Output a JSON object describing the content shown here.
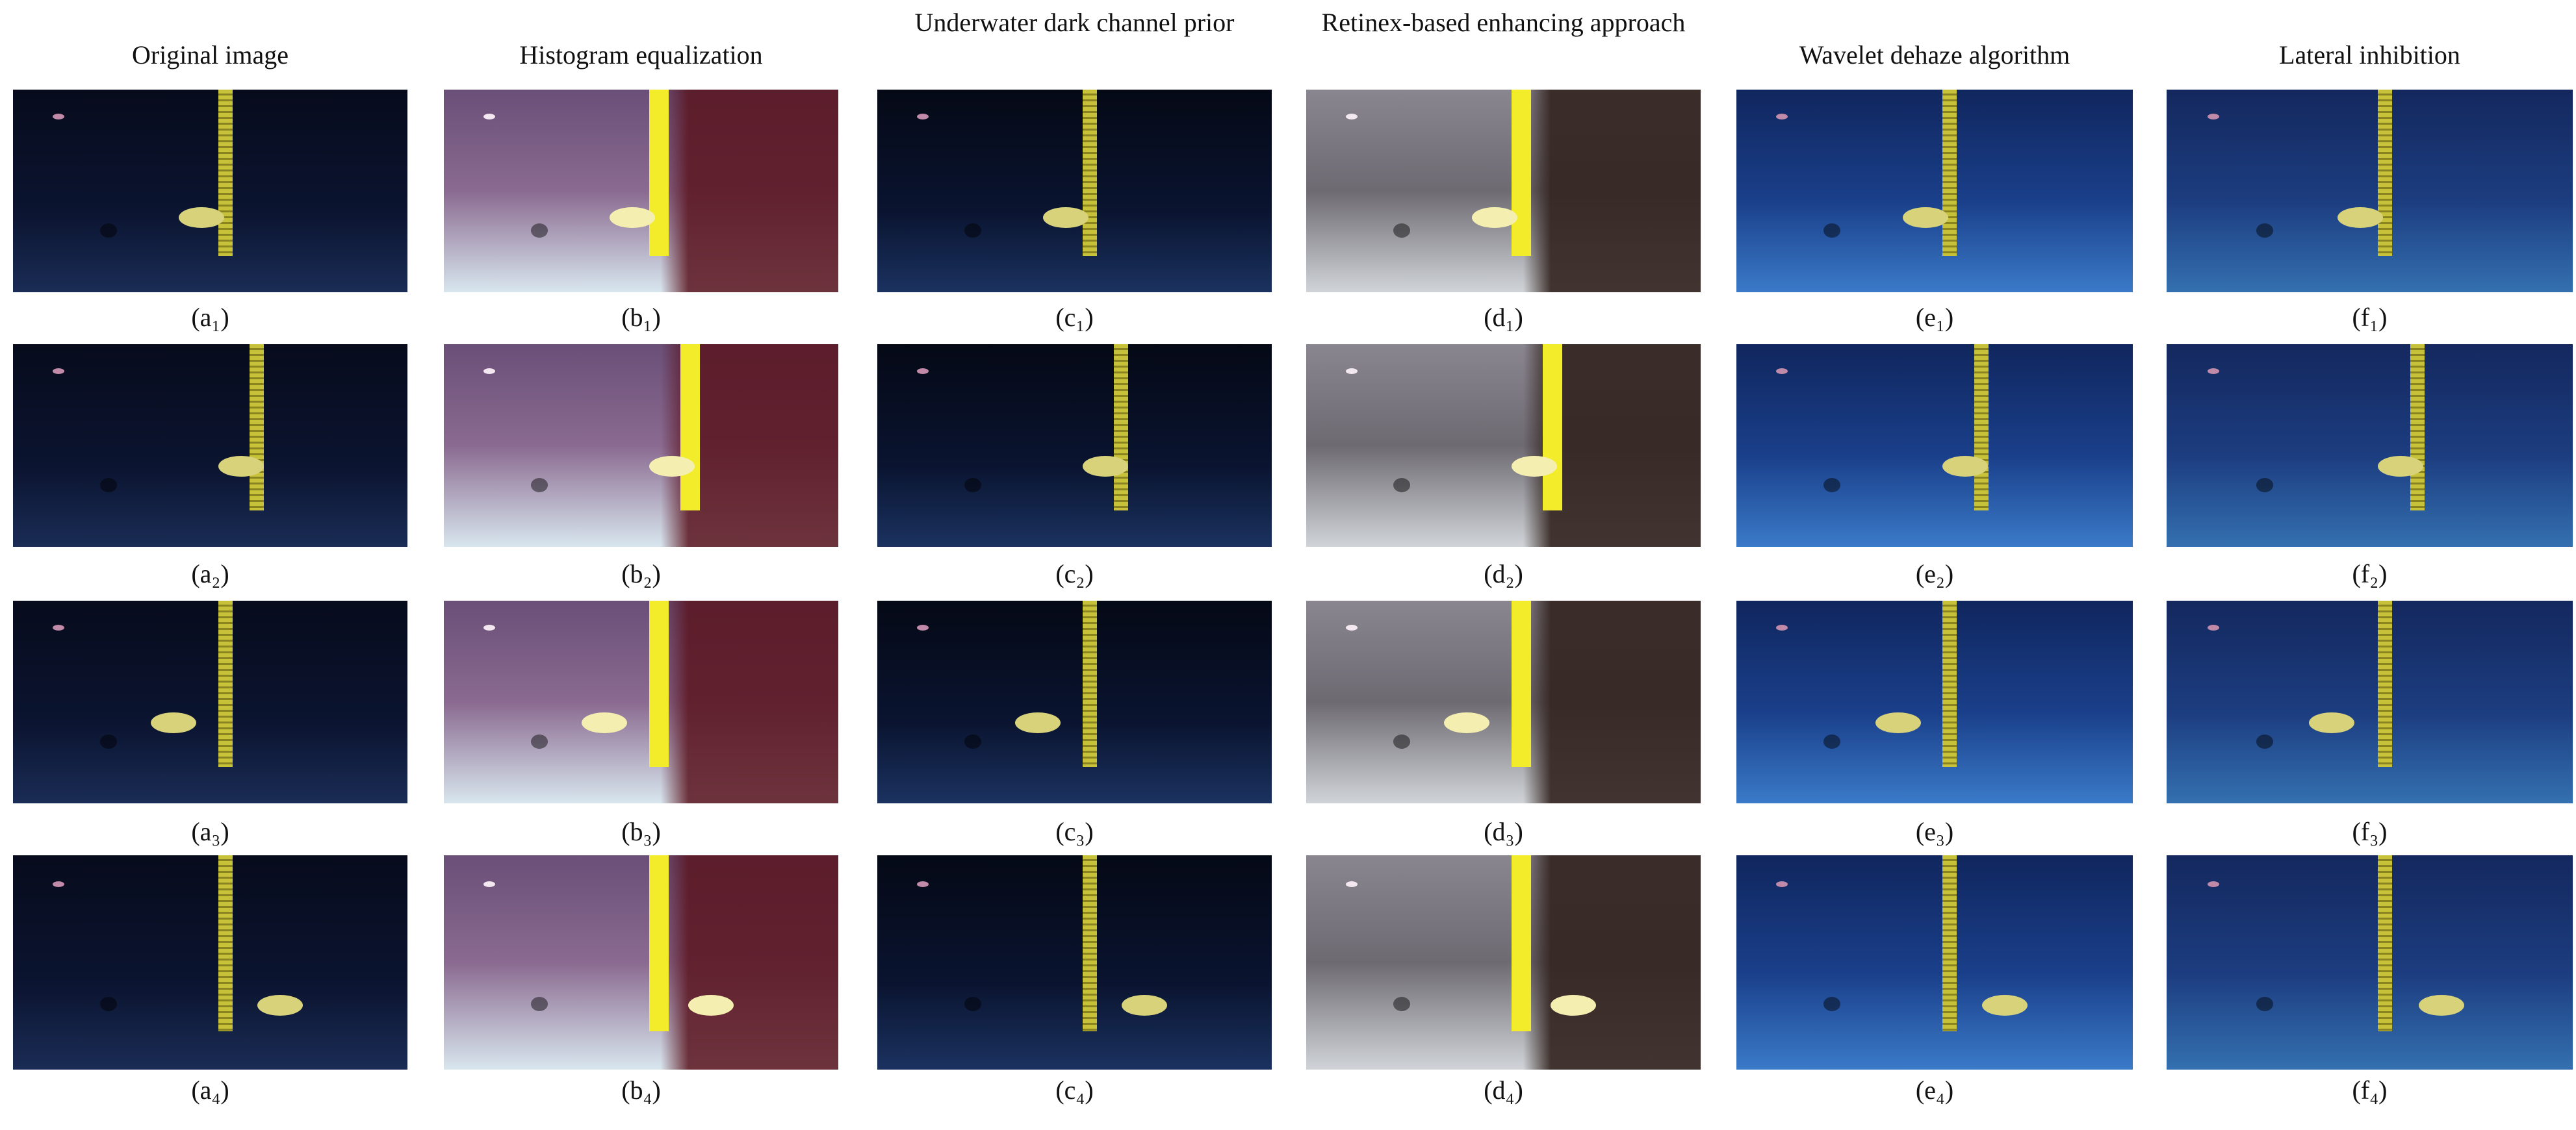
{
  "columns": [
    {
      "title": "Original image",
      "labels": [
        "(a₁)",
        "(a₂)",
        "(a₃)",
        "(a₄)"
      ]
    },
    {
      "title": "Histogram equalization",
      "labels": [
        "(b₁)",
        "(b₂)",
        "(b₃)",
        "(b₄)"
      ]
    },
    {
      "title": "Underwater dark channel prior",
      "labels": [
        "(c₁)",
        "(c₂)",
        "(c₃)",
        "(c₄)"
      ]
    },
    {
      "title": "Retinex-based enhancing approach",
      "labels": [
        "(d₁)",
        "(d₂)",
        "(d₃)",
        "(d₄)"
      ]
    },
    {
      "title": "Wavelet dehaze algorithm",
      "labels": [
        "(e₁)",
        "(e₂)",
        "(e₃)",
        "(e₄)"
      ]
    },
    {
      "title": "Lateral inhibition",
      "labels": [
        "(f₁)",
        "(f₂)",
        "(f₃)",
        "(f₄)"
      ]
    }
  ]
}
